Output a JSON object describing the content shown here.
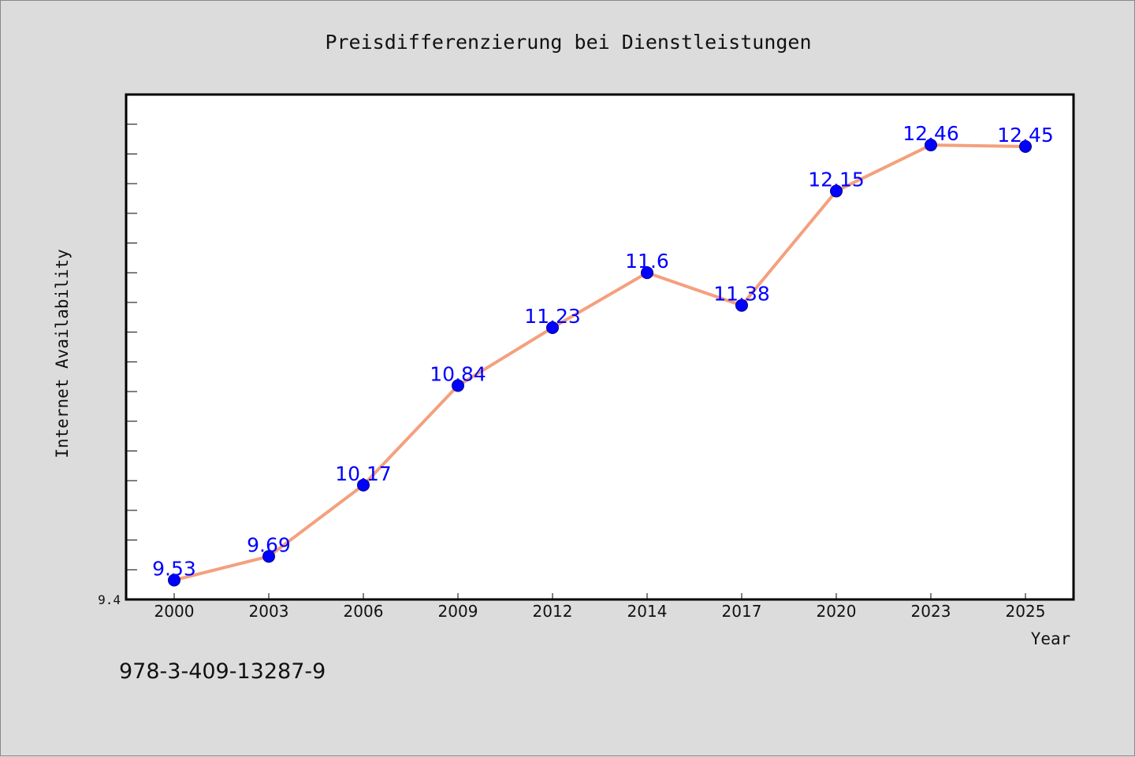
{
  "chart_data": {
    "type": "line",
    "title": "Preisdifferenzierung bei Dienstleistungen",
    "xlabel": "Year",
    "ylabel": "Internet Availability",
    "categories": [
      "2000",
      "2003",
      "2006",
      "2009",
      "2012",
      "2014",
      "2017",
      "2020",
      "2023",
      "2025"
    ],
    "series": [
      {
        "values": [
          9.53,
          9.69,
          10.17,
          10.84,
          11.23,
          11.6,
          11.38,
          12.15,
          12.46,
          12.45
        ]
      }
    ],
    "data_labels": [
      "9.53",
      "9.69",
      "10.17",
      "10.84",
      "11.23",
      "11.6",
      "11.38",
      "12.15",
      "12.46",
      "12.45"
    ],
    "ylim": [
      9.4,
      12.8
    ],
    "y_tick_label": "9.4",
    "grid": false,
    "colors": {
      "line": "#f4a07e",
      "marker": "#0000ff",
      "label": "#0000ff",
      "background": "#dcdcdc",
      "plot_bg": "#ffffff"
    }
  },
  "footer": {
    "isbn": "978-3-409-13287-9"
  }
}
